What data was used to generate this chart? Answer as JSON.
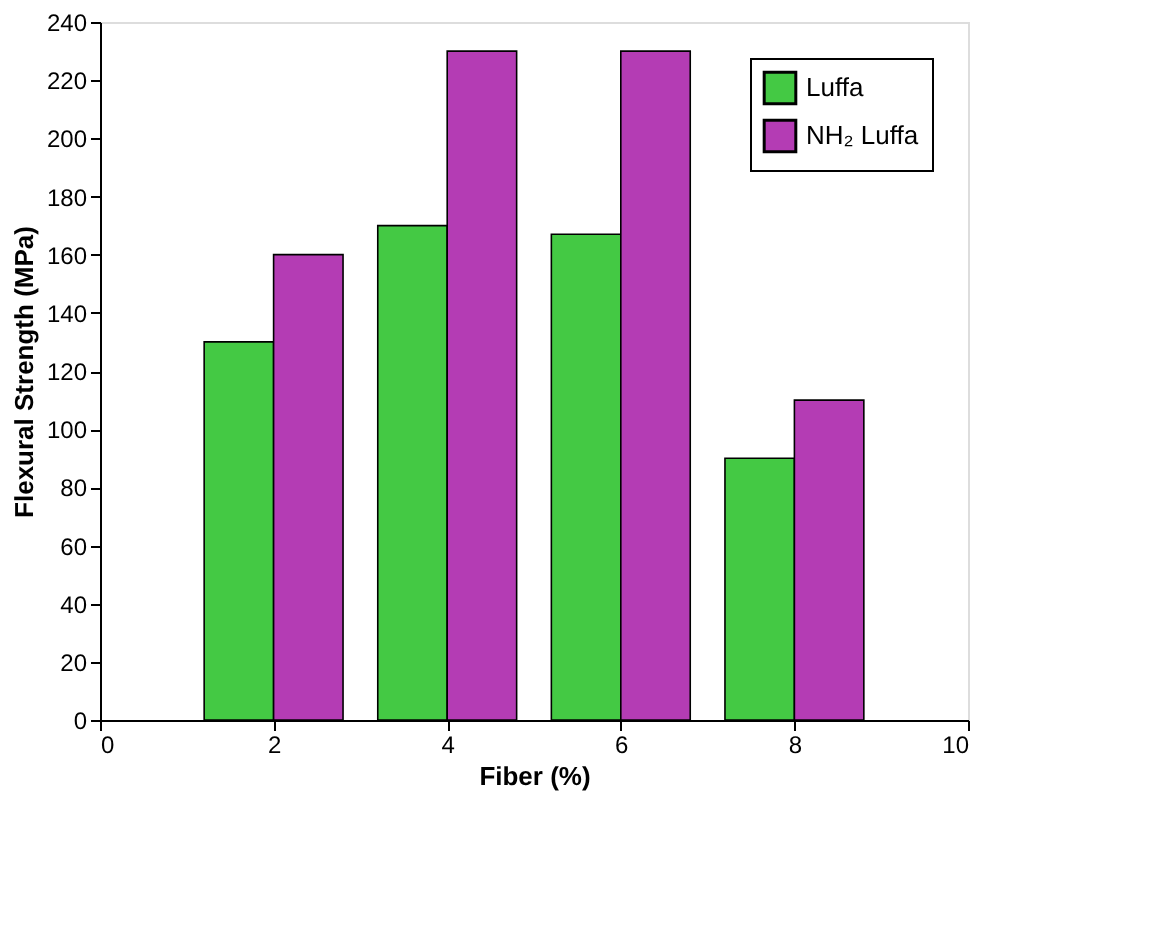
{
  "chart_data": {
    "type": "bar",
    "xlabel": "Fiber (%)",
    "ylabel": "Flexural Strength (MPa)",
    "x": [
      2,
      4,
      6,
      8
    ],
    "series": [
      {
        "name": "Luffa",
        "color": "#44c944",
        "values": [
          130,
          170,
          167,
          90
        ]
      },
      {
        "name": "NH₂ Luffa",
        "color": "#b43cb4",
        "values": [
          160,
          230,
          230,
          110
        ]
      }
    ],
    "xlim": [
      0,
      10
    ],
    "xticks": [
      0,
      2,
      4,
      6,
      8,
      10
    ],
    "ylim": [
      0,
      240
    ],
    "yticks": [
      0,
      20,
      40,
      60,
      80,
      100,
      120,
      140,
      160,
      180,
      200,
      220,
      240
    ],
    "legend": "top right",
    "grid": false
  }
}
